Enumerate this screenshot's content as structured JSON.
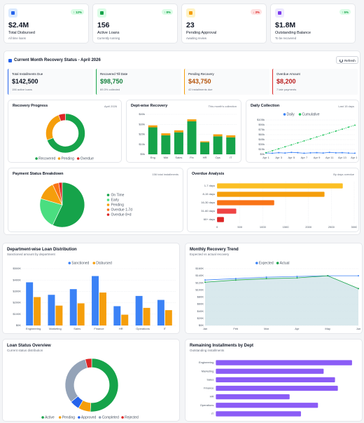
{
  "kpis": [
    {
      "badge": "↑ 12%",
      "value": "$2.4M",
      "label": "Total Disbursed",
      "note": "All time loans"
    },
    {
      "badge": "↑ 8%",
      "value": "156",
      "label": "Active Loans",
      "note": "Currently running"
    },
    {
      "badge": "↓ 3%",
      "value": "23",
      "label": "Pending Approval",
      "note": "Awaiting review"
    },
    {
      "badge": "↑ 5%",
      "value": "$1.8M",
      "label": "Outstanding Balance",
      "note": "To be recovered"
    }
  ],
  "recovery_status": {
    "title": "Current Month Recovery Status - April 2026",
    "refresh": "Refresh",
    "stats": [
      {
        "label": "Total Installments Due",
        "value": "$142,500",
        "note": "156 active loans"
      },
      {
        "label": "Recovered Till Date",
        "value": "$98,750",
        "note": "69.3% collected"
      },
      {
        "label": "Pending Recovery",
        "value": "$43,750",
        "note": "42 installments due"
      },
      {
        "label": "Overdue Amount",
        "value": "$8,200",
        "note": "7 late payments"
      }
    ]
  },
  "chart_data": [
    {
      "type": "donut",
      "title": "Recovery Progress",
      "subtitle": "April 2026",
      "categories": [
        "Recovered",
        "Pending",
        "Overdue"
      ],
      "values": [
        98750,
        35550,
        8200
      ],
      "colors": [
        "#16a34a",
        "#f59e0b",
        "#dc2626"
      ],
      "legend": "bottom"
    },
    {
      "type": "bar",
      "title": "Dept-wise Recovery",
      "subtitle": "This month's collection",
      "stacked": true,
      "categories": [
        "Eng",
        "Mkt",
        "Sales",
        "Fin",
        "HR",
        "Ops",
        "IT"
      ],
      "series": [
        {
          "color": "#16a34a",
          "values": [
            27,
            19,
            22,
            33,
            12,
            18,
            17
          ]
        },
        {
          "color": "#f59e0b",
          "values": [
            2,
            2,
            2,
            2,
            1,
            2,
            2
          ]
        }
      ],
      "ylim": [
        0,
        40
      ],
      "yticks": [
        {
          "value": 0,
          "label": "$0k"
        },
        {
          "value": 10,
          "label": "$10k"
        },
        {
          "value": 20,
          "label": "$20k"
        },
        {
          "value": 30,
          "label": "$30k"
        },
        {
          "value": 40,
          "label": "$40k"
        }
      ],
      "grid": true
    },
    {
      "type": "line",
      "title": "Daily Collection",
      "subtitle": "Last 15 days",
      "categories": [
        "Apr 1",
        null,
        "Apr 3",
        null,
        "Apr 5",
        null,
        "Apr 7",
        null,
        "Apr 9",
        null,
        "Apr 11",
        null,
        "Apr 13",
        null,
        "Apr 15"
      ],
      "series": [
        {
          "name": "Daily",
          "color": "#3b82f6",
          "values": [
            4,
            3.5,
            5,
            4,
            6,
            5,
            3.5,
            4.5,
            5,
            4,
            6,
            4.5,
            5,
            4,
            3.5
          ]
        },
        {
          "name": "Cumulative",
          "color": "#22c55e",
          "dashed": true,
          "values": [
            5,
            11,
            17,
            23,
            29,
            35,
            41,
            47,
            53,
            59,
            65,
            71,
            77,
            83,
            89
          ]
        }
      ],
      "ylim": [
        0,
        105
      ],
      "yticks": [
        {
          "value": 0,
          "label": "$0k"
        },
        {
          "value": 15,
          "label": "$15k"
        },
        {
          "value": 30,
          "label": "$30k"
        },
        {
          "value": 45,
          "label": "$45k"
        },
        {
          "value": 60,
          "label": "$60k"
        },
        {
          "value": 75,
          "label": "$75k"
        },
        {
          "value": 90,
          "label": "$90k"
        },
        {
          "value": 105,
          "label": "$105k"
        }
      ],
      "grid": true,
      "legend": "top"
    },
    {
      "type": "pie",
      "title": "Payment Status Breakdown",
      "subtitle": "156 total installments",
      "categories": [
        "On Time",
        "Early",
        "Pending",
        "Overdue 1-7d",
        "Overdue 8+d"
      ],
      "values": [
        89,
        35,
        21,
        7,
        4
      ],
      "colors": [
        "#16a34a",
        "#4ade80",
        "#f59e0b",
        "#f97316",
        "#dc2626"
      ],
      "legend": "right"
    },
    {
      "type": "hbar",
      "title": "Overdue Analysis",
      "subtitle": "By days overdue",
      "categories": [
        "1-7 days",
        "8-15 days",
        "16-30 days",
        "31-60 days",
        "60+ days"
      ],
      "values": [
        2750,
        2350,
        1250,
        420,
        150
      ],
      "colors": [
        "#fbbf24",
        "#f59e0b",
        "#f97316",
        "#ef4444",
        "#dc2626"
      ],
      "xlim": [
        0,
        3000
      ],
      "xticks": [
        0,
        500,
        1000,
        1500,
        2000,
        2500,
        3000
      ],
      "grid": true
    },
    {
      "type": "bar",
      "title": "Department-wise Loan Distribution",
      "subtitle": "Sanctioned amount by department",
      "categories": [
        "Engineering",
        "Marketing",
        "Sales",
        "Finance",
        "HR",
        "Operations",
        "IT"
      ],
      "series": [
        {
          "name": "Sanctioned",
          "color": "#3b82f6",
          "values": [
            380,
            270,
            320,
            435,
            170,
            260,
            225
          ]
        },
        {
          "name": "Disbursed",
          "color": "#f59e0b",
          "values": [
            250,
            175,
            195,
            290,
            95,
            155,
            135
          ]
        }
      ],
      "ylim": [
        0,
        500
      ],
      "yticks": [
        {
          "value": 0,
          "label": "$0K"
        },
        {
          "value": 100,
          "label": "$100K"
        },
        {
          "value": 200,
          "label": "$200K"
        },
        {
          "value": 300,
          "label": "$300K"
        },
        {
          "value": 400,
          "label": "$400K"
        },
        {
          "value": 500,
          "label": "$500K"
        }
      ],
      "grid": true,
      "legend": "top"
    },
    {
      "type": "line",
      "title": "Monthly Recovery Trend",
      "subtitle": "Expected vs actual recovery",
      "categories": [
        "Jan",
        "Feb",
        "Mar",
        "Apr",
        "May",
        "Jun"
      ],
      "series": [
        {
          "name": "Expected",
          "color": "#3b82f6",
          "values": [
            128,
            132,
            136,
            138,
            140,
            140
          ]
        },
        {
          "name": "Actual",
          "color": "#16a34a",
          "area": true,
          "values": [
            122,
            128,
            132,
            134,
            140,
            104
          ]
        }
      ],
      "ylim": [
        0,
        160
      ],
      "yticks": [
        {
          "value": 0,
          "label": "$0K"
        },
        {
          "value": 20,
          "label": "$20K"
        },
        {
          "value": 40,
          "label": "$40K"
        },
        {
          "value": 60,
          "label": "$60K"
        },
        {
          "value": 80,
          "label": "$80K"
        },
        {
          "value": 100,
          "label": "$100K"
        },
        {
          "value": 120,
          "label": "$120K"
        },
        {
          "value": 140,
          "label": "$140K"
        },
        {
          "value": 160,
          "label": "$160K"
        }
      ],
      "grid": true,
      "legend": "top"
    },
    {
      "type": "donut",
      "title": "Loan Status Overview",
      "subtitle": "Current status distribution",
      "categories": [
        "Active",
        "Pending",
        "Approved",
        "Completed",
        "Rejected"
      ],
      "values": [
        156,
        23,
        18,
        98,
        12
      ],
      "colors": [
        "#16a34a",
        "#f59e0b",
        "#2563eb",
        "#94a3b8",
        "#dc2626"
      ],
      "legend": "bottom"
    },
    {
      "type": "hbar",
      "title": "Remaining Installments by Dept",
      "subtitle": "Outstanding installments",
      "categories": [
        "Engineering",
        "Marketing",
        "Sales",
        "Finance",
        "HR",
        "Operations",
        "IT"
      ],
      "values": [
        48,
        38,
        42,
        43,
        26,
        36,
        30
      ],
      "color": "#8b5cf6",
      "xlim": [
        0,
        50
      ]
    }
  ]
}
